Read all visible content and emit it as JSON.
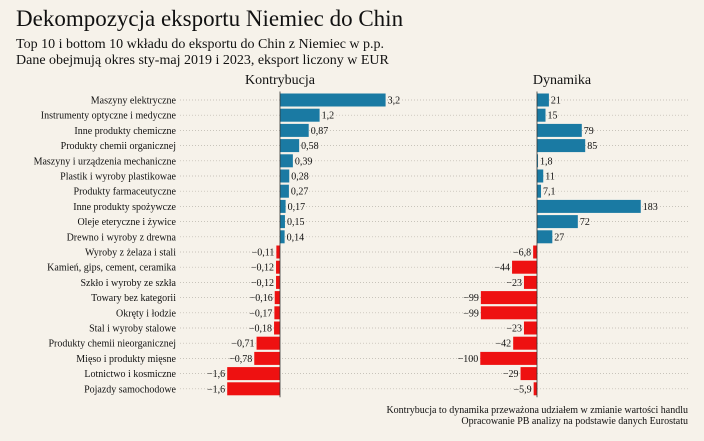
{
  "title": "Dekompozycja eksportu Niemiec do Chin",
  "subtitle_1": "Top 10 i bottom 10 wkładu do eksportu do Chin z Niemiec w p.p.",
  "subtitle_2": "Dane obejmują okres sty-maj 2019 i 2023, eksport liczony w EUR",
  "footnote_1": "Kontrybucja to dynamika przeważona udziałem w zmianie wartości handlu",
  "footnote_2": "Opracowanie PB analizy na podstawie danych Eurostatu",
  "colors": {
    "positive": "#1a7aa3",
    "negative": "#ee1111",
    "background": "#f6f2ea"
  },
  "chart_data": [
    {
      "type": "bar",
      "orientation": "horizontal",
      "title": "Kontrybucja",
      "categories": [
        "Maszyny elektryczne",
        "Instrumenty optyczne i medyczne",
        "Inne produkty chemiczne",
        "Produkty chemii organicznej",
        "Maszyny i urządzenia mechaniczne",
        "Plastik i wyroby plastikowae",
        "Produkty farmaceutyczne",
        "Inne produkty spożywcze",
        "Oleje eteryczne i żywice",
        "Drewno i wyroby z drewna",
        "Wyroby z żelaza i stali",
        "Kamień, gips, cement, ceramika",
        "Szkło i wyroby ze szkła",
        "Towary bez kategorii",
        "Okręty i łodzie",
        "Stal i wyroby stalowe",
        "Produkty chemii nieorganicznej",
        "Mięso i produkty mięsne",
        "Lotnictwo i kosmiczne",
        "Pojazdy samochodowe"
      ],
      "values": [
        3.2,
        1.2,
        0.87,
        0.58,
        0.39,
        0.28,
        0.27,
        0.17,
        0.15,
        0.14,
        -0.11,
        -0.12,
        -0.12,
        -0.16,
        -0.17,
        -0.18,
        -0.71,
        -0.78,
        -1.6,
        -1.6
      ],
      "value_labels": [
        "3,2",
        "1,2",
        "0,87",
        "0,58",
        "0,39",
        "0,28",
        "0,27",
        "0,17",
        "0,15",
        "0,14",
        "−0,11",
        "−0,12",
        "−0,12",
        "−0,16",
        "−0,17",
        "−0,18",
        "−0,71",
        "−0,78",
        "−1,6",
        "−1,6"
      ]
    },
    {
      "type": "bar",
      "orientation": "horizontal",
      "title": "Dynamika",
      "categories": [
        "Maszyny elektryczne",
        "Instrumenty optyczne i medyczne",
        "Inne produkty chemiczne",
        "Produkty chemii organicznej",
        "Maszyny i urządzenia mechaniczne",
        "Plastik i wyroby plastikowae",
        "Produkty farmaceutyczne",
        "Inne produkty spożywcze",
        "Oleje eteryczne i żywice",
        "Drewno i wyroby z drewna",
        "Wyroby z żelaza i stali",
        "Kamień, gips, cement, ceramika",
        "Szkło i wyroby ze szkła",
        "Towary bez kategorii",
        "Okręty i łodzie",
        "Stal i wyroby stalowe",
        "Produkty chemii nieorganicznej",
        "Mięso i produkty mięsne",
        "Lotnictwo i kosmiczne",
        "Pojazdy samochodowe"
      ],
      "values": [
        21,
        15,
        79,
        85,
        1.8,
        11,
        7.1,
        183,
        72,
        27,
        -6.8,
        -44,
        -23,
        -99,
        -99,
        -23,
        -42,
        -100,
        -29,
        -5.9
      ],
      "value_labels": [
        "21",
        "15",
        "79",
        "85",
        "1,8",
        "11",
        "7,1",
        "183",
        "72",
        "27",
        "−6,8",
        "−44",
        "−23",
        "−99",
        "−99",
        "−23",
        "−42",
        "−100",
        "−29",
        "−5,9"
      ]
    }
  ]
}
